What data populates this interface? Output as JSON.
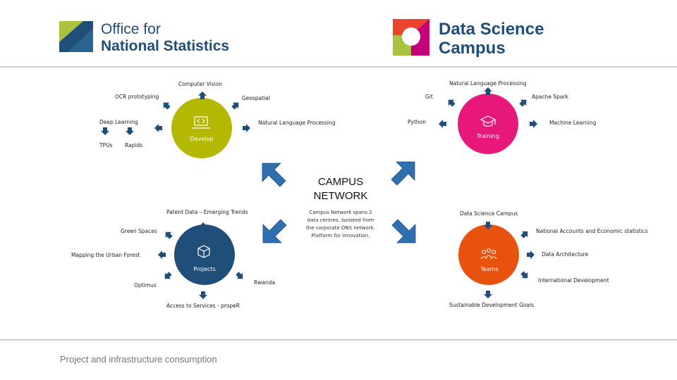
{
  "logos": {
    "ons": {
      "line1": "Office for",
      "line2": "National Statistics",
      "color": "#1f4e79",
      "accent": "#a9c23f"
    },
    "dsc": {
      "line1": "Data Science",
      "line2": "Campus",
      "color": "#1f4e79",
      "accent1": "#e8452c",
      "accent2": "#c4007a"
    }
  },
  "center": {
    "title_line1": "CAMPUS",
    "title_line2": "NETWORK",
    "desc_line1": "Campus Network spans 2",
    "desc_line2": "data centres. Isolated from",
    "desc_line3": "the corporate ONS network.",
    "desc_line4": "Platform for innovation."
  },
  "hubs": {
    "develop": {
      "label": "Develop",
      "color": "#b5b800",
      "icon": "laptop-code-icon"
    },
    "training": {
      "label": "Training",
      "color": "#e8177a",
      "icon": "graduation-cap-icon"
    },
    "projects": {
      "label": "Projects",
      "color": "#1f4e79",
      "icon": "box-icon"
    },
    "teams": {
      "label": "Teams",
      "color": "#e8520f",
      "icon": "people-icon"
    }
  },
  "develop_items": {
    "computer_vision": "Computer Vision",
    "ocr": "OCR prototyping",
    "geospatial": "Geospatial",
    "deep_learning": "Deep Learning",
    "nlp": "Natural Language Processing",
    "tpus": "TPUs",
    "rapids": "Rapids"
  },
  "training_items": {
    "nlp": "Natural Language Processing",
    "git": "Git",
    "spark": "Apache Spark",
    "python": "Python",
    "ml": "Machine Learning"
  },
  "projects_items": {
    "patent": "Patent Data – Emerging Trends",
    "green": "Green Spaces",
    "urban": "Mapping the Urban Forest",
    "optimus": "Optimus",
    "rwanda": "Rwanda",
    "access": "Access to Services - propeR"
  },
  "teams_items": {
    "campus": "Data Science Campus",
    "national": "National Accounts and Economic statistics",
    "data_arch": "Data Architecture",
    "international": "International Development",
    "sdg": "Sustainable Development Goals"
  },
  "footer": "Project and infrastructure consumption",
  "arrow_color": "#2f6fb0",
  "small_arrow_color": "#1f4e79"
}
